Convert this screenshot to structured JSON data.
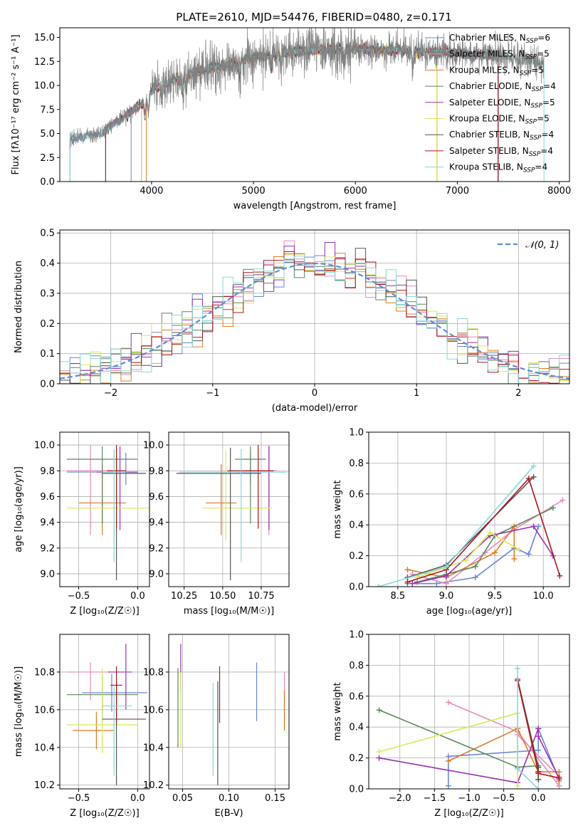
{
  "figure_title": "PLATE=2610, MJD=54476, FIBERID=0480, z=0.171",
  "colors": {
    "Chabrier MILES": "#6a86d6",
    "Salpeter MILES": "#e88bbd",
    "Kroupa MILES": "#e07c22",
    "Chabrier ELODIE": "#5a8a5e",
    "Salpeter ELODIE": "#9b2fb5",
    "Kroupa ELODIE": "#d9ea54",
    "Chabrier STELIB": "#555555",
    "Salpeter STELIB": "#b0141c",
    "Kroupa STELIB": "#86dada",
    "data": "#808080",
    "gauss": "#5b8fd6"
  },
  "chart_data": [
    {
      "id": "spectrum",
      "type": "line",
      "xlabel": "wavelength [Angstrom, rest frame]",
      "ylabel": "Flux [fλ10⁻¹⁷ erg cm⁻² s⁻¹ A⁻¹]",
      "xlim": [
        3100,
        8100
      ],
      "ylim": [
        0,
        16
      ],
      "xticks": [
        4000,
        5000,
        6000,
        7000,
        8000
      ],
      "yticks": [
        0.0,
        2.5,
        5.0,
        7.5,
        10.0,
        12.5,
        15.0
      ],
      "ytick_labels": [
        "0.0",
        "2.5",
        "5.0",
        "7.5",
        "10.0",
        "12.5",
        "15.0"
      ],
      "legend_position": "upper-right",
      "legend": [
        "Chabrier MILES, N_SSP=6",
        "Salpeter MILES, N_SSP=5",
        "Kroupa MILES, N_SSP=5",
        "Chabrier ELODIE, N_SSP=4",
        "Salpeter ELODIE, N_SSP=5",
        "Kroupa ELODIE, N_SSP=5",
        "Chabrier STELIB, N_SSP=4",
        "Salpeter STELIB, N_SSP=4",
        "Kroupa STELIB, N_SSP=4"
      ],
      "legend_labels": [
        {
          "base": "Chabrier MILES, N",
          "sub": "SSP",
          "tail": "=6"
        },
        {
          "base": "Salpeter MILES, N",
          "sub": "SSP",
          "tail": "=5"
        },
        {
          "base": "Kroupa MILES, N",
          "sub": "SSP",
          "tail": "=5"
        },
        {
          "base": "Chabrier ELODIE, N",
          "sub": "SSP",
          "tail": "=4"
        },
        {
          "base": "Salpeter ELODIE, N",
          "sub": "SSP",
          "tail": "=5"
        },
        {
          "base": "Kroupa ELODIE, N",
          "sub": "SSP",
          "tail": "=5"
        },
        {
          "base": "Chabrier STELIB, N",
          "sub": "SSP",
          "tail": "=4"
        },
        {
          "base": "Salpeter STELIB, N",
          "sub": "SSP",
          "tail": "=4"
        },
        {
          "base": "Kroupa STELIB, N",
          "sub": "SSP",
          "tail": "=4"
        }
      ],
      "legend_colors": [
        "#6a86d6",
        "#e88bbd",
        "#e07c22",
        "#5a8a5e",
        "#9b2fb5",
        "#d9ea54",
        "#555555",
        "#b0141c",
        "#86dada"
      ],
      "continuum_knots": [
        [
          3200,
          4.4
        ],
        [
          3500,
          5.0
        ],
        [
          3700,
          6.5
        ],
        [
          3950,
          8.5
        ],
        [
          4000,
          9.5
        ],
        [
          4200,
          10.5
        ],
        [
          4500,
          11.6
        ],
        [
          4800,
          12.3
        ],
        [
          5000,
          12.9
        ],
        [
          5500,
          13.6
        ],
        [
          6000,
          13.8
        ],
        [
          6500,
          13.6
        ],
        [
          7000,
          13.4
        ],
        [
          7500,
          13.0
        ],
        [
          7850,
          12.3
        ]
      ],
      "model_starts": [
        [
          3200,
          3800
        ],
        [
          3550,
          7400
        ],
        [
          3950,
          6800
        ],
        [
          3900,
          7400
        ],
        [
          3900,
          7400
        ],
        [
          3900,
          6800
        ],
        [
          3550,
          7400
        ],
        [
          3550,
          7400
        ],
        [
          3200,
          7850
        ]
      ]
    },
    {
      "id": "residuals",
      "type": "histogram",
      "xlabel": "(data-model)/error",
      "ylabel": "Normed distribution",
      "xlim": [
        -2.5,
        2.5
      ],
      "ylim": [
        0,
        0.51
      ],
      "xticks": [
        -2,
        -1,
        0,
        1,
        2
      ],
      "xtick_labels": [
        "−2",
        "−1",
        "0",
        "1",
        "2"
      ],
      "yticks": [
        0.0,
        0.1,
        0.2,
        0.3,
        0.4,
        0.5
      ],
      "ytick_labels": [
        "0.0",
        "0.1",
        "0.2",
        "0.3",
        "0.4",
        "0.5"
      ],
      "bin_width": 0.1,
      "legend": "𝒩(0, 1)",
      "legend_position": "upper-right",
      "grid": true
    },
    {
      "id": "age_vs_Z",
      "type": "errorbar",
      "xlabel": "Z [log₁₀(Z/Z☉)]",
      "ylabel": "age  [log₁₀(age/yr)]",
      "xlim": [
        -0.66,
        0.1
      ],
      "ylim": [
        8.9,
        10.1
      ],
      "xticks": [
        -0.5,
        0.0
      ],
      "xtick_labels": [
        "−0.5",
        "0.0"
      ],
      "yticks": [
        9.0,
        9.2,
        9.4,
        9.6,
        9.8,
        10.0
      ],
      "ytick_labels": [
        "9.0",
        "9.2",
        "9.4",
        "9.6",
        "9.8",
        "10.0"
      ],
      "grid": true,
      "points": [
        {
          "x": -0.1,
          "xerr": [
            0.5,
            0.1
          ],
          "y": 9.79,
          "yerr": [
            0.1,
            0.15
          ]
        },
        {
          "x": -0.4,
          "xerr": [
            0.2,
            0.2
          ],
          "y": 9.8,
          "yerr": [
            0.5,
            0.2
          ]
        },
        {
          "x": -0.3,
          "xerr": [
            0.2,
            0.2
          ],
          "y": 9.55,
          "yerr": [
            0.25,
            0.3
          ]
        },
        {
          "x": -0.3,
          "xerr": [
            0.3,
            0.3
          ],
          "y": 9.89,
          "yerr": [
            0.5,
            0.1
          ]
        },
        {
          "x": -0.15,
          "xerr": [
            0.2,
            0.15
          ],
          "y": 9.79,
          "yerr": [
            0.45,
            0.2
          ]
        },
        {
          "x": -0.2,
          "xerr": [
            0.4,
            0.4
          ],
          "y": 9.51,
          "yerr": [
            0.25,
            0.45
          ]
        },
        {
          "x": -0.18,
          "xerr": [
            0.12,
            0.25
          ],
          "y": 9.78,
          "yerr": [
            0.83,
            0.2
          ]
        },
        {
          "x": -0.18,
          "xerr": [
            0.08,
            0.08
          ],
          "y": 9.8,
          "yerr": [
            0.45,
            0.2
          ]
        },
        {
          "x": -0.2,
          "xerr": [
            0.1,
            0.1
          ],
          "y": 9.79,
          "yerr": [
            0.7,
            0.18
          ]
        }
      ]
    },
    {
      "id": "age_vs_mass",
      "type": "errorbar",
      "xlabel": "mass [log₁₀(M/M☉)]",
      "ylabel": "",
      "xlim": [
        10.15,
        10.93
      ],
      "ylim": [
        8.9,
        10.1
      ],
      "xticks": [
        10.25,
        10.5,
        10.75
      ],
      "xtick_labels": [
        "10.25",
        "10.50",
        "10.75"
      ],
      "yticks": [
        9.0,
        9.2,
        9.4,
        9.6,
        9.8,
        10.0
      ],
      "ytick_labels": [
        "9.0",
        "9.2",
        "9.4",
        "9.6",
        "9.8",
        "10.0"
      ],
      "grid": true,
      "points": [
        {
          "x": 10.68,
          "xerr": [
            0.1,
            0.05
          ],
          "y": 9.79,
          "yerr": [
            0.1,
            0.15
          ]
        },
        {
          "x": 10.8,
          "xerr": [
            0.15,
            0.05
          ],
          "y": 9.8,
          "yerr": [
            0.5,
            0.2
          ]
        },
        {
          "x": 10.49,
          "xerr": [
            0.1,
            0.1
          ],
          "y": 9.55,
          "yerr": [
            0.25,
            0.3
          ]
        },
        {
          "x": 10.68,
          "xerr": [
            0.1,
            0.1
          ],
          "y": 9.89,
          "yerr": [
            0.5,
            0.1
          ]
        },
        {
          "x": 10.8,
          "xerr": [
            0.2,
            0.1
          ],
          "y": 9.79,
          "yerr": [
            0.45,
            0.2
          ]
        },
        {
          "x": 10.52,
          "xerr": [
            0.15,
            0.3
          ],
          "y": 9.51,
          "yerr": [
            0.25,
            0.45
          ]
        },
        {
          "x": 10.55,
          "xerr": [
            0.35,
            0.2
          ],
          "y": 9.78,
          "yerr": [
            0.83,
            0.2
          ]
        },
        {
          "x": 10.73,
          "xerr": [
            0.2,
            0.1
          ],
          "y": 9.8,
          "yerr": [
            0.45,
            0.2
          ]
        },
        {
          "x": 10.62,
          "xerr": [
            0.4,
            0.3
          ],
          "y": 9.79,
          "yerr": [
            0.7,
            0.18
          ]
        }
      ]
    },
    {
      "id": "weight_vs_age",
      "type": "line",
      "xlabel": "age  [log₁₀(age/yr)]",
      "ylabel": "mass weight",
      "xlim": [
        8.2,
        10.27
      ],
      "ylim": [
        0,
        1
      ],
      "xticks": [
        8.5,
        9.0,
        9.5,
        10.0
      ],
      "xtick_labels": [
        "8.5",
        "9.0",
        "9.5",
        "10.0"
      ],
      "yticks": [
        0.0,
        0.2,
        0.4,
        0.6,
        0.8,
        1.0
      ],
      "ytick_labels": [
        "0.0",
        "0.2",
        "0.4",
        "0.6",
        "0.8",
        "1.0"
      ],
      "grid": true,
      "series": [
        {
          "x": [
            8.6,
            8.9,
            9.3,
            9.7,
            9.85,
            9.95
          ],
          "y": [
            0.02,
            0.02,
            0.06,
            0.25,
            0.21,
            0.39
          ]
        },
        {
          "x": [
            8.65,
            9.0,
            9.4,
            9.7,
            10.2
          ],
          "y": [
            0.08,
            0.02,
            0.22,
            0.37,
            0.56
          ]
        },
        {
          "x": [
            8.6,
            9.0,
            9.5,
            9.7,
            9.7
          ],
          "y": [
            0.11,
            0.06,
            0.22,
            0.39,
            0.18
          ]
        },
        {
          "x": [
            8.7,
            9.0,
            9.3,
            9.5,
            10.1
          ],
          "y": [
            0.03,
            0.08,
            0.13,
            0.33,
            0.51
          ]
        },
        {
          "x": [
            8.65,
            9.0,
            9.45,
            9.9,
            10.1
          ],
          "y": [
            0.02,
            0.07,
            0.33,
            0.39,
            0.2
          ]
        },
        {
          "x": [
            8.7,
            9.2,
            9.45,
            9.75
          ],
          "y": [
            0.06,
            0.17,
            0.35,
            0.24
          ]
        },
        {
          "x": [
            8.6,
            9.0,
            9.9
          ],
          "y": [
            0.06,
            0.14,
            0.71
          ]
        },
        {
          "x": [
            8.6,
            9.0,
            9.85,
            10.17
          ],
          "y": [
            0.03,
            0.11,
            0.7,
            0.07
          ]
        },
        {
          "x": [
            8.3,
            9.0,
            9.9
          ],
          "y": [
            0.0,
            0.13,
            0.78
          ]
        }
      ]
    },
    {
      "id": "mass_vs_Z",
      "type": "errorbar",
      "xlabel": "Z [log₁₀(Z/Z☉)]",
      "ylabel": "mass [log₁₀(M/M☉)]",
      "xlim": [
        -0.66,
        0.1
      ],
      "ylim": [
        10.18,
        11.0
      ],
      "xticks": [
        -0.5,
        0.0
      ],
      "xtick_labels": [
        "−0.5",
        "0.0"
      ],
      "yticks": [
        10.2,
        10.4,
        10.6,
        10.8
      ],
      "ytick_labels": [
        "10.2",
        "10.4",
        "10.6",
        "10.8"
      ],
      "grid": true,
      "points": [
        {
          "x": -0.22,
          "xerr": [
            0.25,
            0.3
          ],
          "y": 10.69,
          "yerr": [
            0.1,
            0.1
          ]
        },
        {
          "x": -0.4,
          "xerr": [
            0.2,
            0.2
          ],
          "y": 10.8,
          "yerr": [
            0.15,
            0.05
          ]
        },
        {
          "x": -0.35,
          "xerr": [
            0.2,
            0.15
          ],
          "y": 10.49,
          "yerr": [
            0.1,
            0.1
          ]
        },
        {
          "x": -0.3,
          "xerr": [
            0.3,
            0.3
          ],
          "y": 10.68,
          "yerr": [
            0.15,
            0.1
          ]
        },
        {
          "x": -0.1,
          "xerr": [
            0.15,
            0.05
          ],
          "y": 10.8,
          "yerr": [
            0.2,
            0.15
          ]
        },
        {
          "x": -0.3,
          "xerr": [
            0.3,
            0.3
          ],
          "y": 10.52,
          "yerr": [
            0.15,
            0.3
          ]
        },
        {
          "x": -0.18,
          "xerr": [
            0.12,
            0.25
          ],
          "y": 10.55,
          "yerr": [
            0.35,
            0.2
          ]
        },
        {
          "x": -0.18,
          "xerr": [
            0.05,
            0.05
          ],
          "y": 10.73,
          "yerr": [
            0.2,
            0.1
          ]
        },
        {
          "x": -0.2,
          "xerr": [
            0.1,
            0.15
          ],
          "y": 10.62,
          "yerr": [
            0.37,
            0.1
          ]
        }
      ]
    },
    {
      "id": "mass_vs_EBV",
      "type": "errorbar",
      "xlabel": "E(B-V)",
      "ylabel": "",
      "xlim": [
        0.035,
        0.165
      ],
      "ylim": [
        10.18,
        11.0
      ],
      "xticks": [
        0.05,
        0.1,
        0.15
      ],
      "xtick_labels": [
        "0.05",
        "0.10",
        "0.15"
      ],
      "yticks": [
        10.2,
        10.4,
        10.6,
        10.8
      ],
      "ytick_labels": [
        "10.2",
        "10.4",
        "10.6",
        "10.8"
      ],
      "grid": true,
      "points": [
        {
          "x": 0.13,
          "y": 10.69,
          "yerr": [
            0.15,
            0.16
          ]
        },
        {
          "x": 0.16,
          "y": 10.69,
          "yerr": [
            0.2,
            0.11
          ]
        },
        {
          "x": 0.16,
          "y": 10.6,
          "yerr": [
            0.11,
            0.1
          ]
        },
        {
          "x": 0.045,
          "y": 10.6,
          "yerr": [
            0.2,
            0.22
          ]
        },
        {
          "x": 0.048,
          "y": 10.8,
          "yerr": [
            0.1,
            0.15
          ]
        },
        {
          "x": 0.048,
          "y": 10.6,
          "yerr": [
            0.2,
            0.2
          ]
        },
        {
          "x": 0.088,
          "y": 10.55,
          "yerr": [
            0.35,
            0.2
          ]
        },
        {
          "x": 0.09,
          "y": 10.73,
          "yerr": [
            0.2,
            0.1
          ]
        },
        {
          "x": 0.083,
          "y": 10.5,
          "yerr": [
            0.25,
            0.24
          ]
        }
      ]
    },
    {
      "id": "weight_vs_Z",
      "type": "line",
      "xlabel": "Z [log₁₀(Z/Z☉)]",
      "ylabel": "mass weight",
      "xlim": [
        -2.45,
        0.45
      ],
      "ylim": [
        0,
        1
      ],
      "xticks": [
        -2.0,
        -1.5,
        -1.0,
        -0.5,
        0.0
      ],
      "xtick_labels": [
        "−2.0",
        "−1.5",
        "−1.0",
        "−0.5",
        "0.0"
      ],
      "yticks": [
        0.0,
        0.2,
        0.4,
        0.6,
        0.8,
        1.0
      ],
      "ytick_labels": [
        "0.0",
        "0.2",
        "0.4",
        "0.6",
        "0.8",
        "1.0"
      ],
      "grid": true,
      "series": [
        {
          "x": [
            -1.3,
            -1.3,
            0.0,
            0.0,
            0.3,
            0.3
          ],
          "y": [
            0.02,
            0.21,
            0.25,
            0.39,
            0.06,
            0.02
          ]
        },
        {
          "x": [
            -1.3,
            -0.3,
            0.3,
            0.3,
            -0.3
          ],
          "y": [
            0.56,
            0.37,
            0.02,
            0.08,
            0.35
          ]
        },
        {
          "x": [
            -1.3,
            -0.3,
            0.0,
            0.3,
            0.3
          ],
          "y": [
            0.18,
            0.39,
            0.11,
            0.11,
            0.05
          ]
        },
        {
          "x": [
            -2.3,
            -0.3,
            0.0,
            0.0
          ],
          "y": [
            0.51,
            0.14,
            0.15,
            0.06
          ]
        },
        {
          "x": [
            -2.3,
            -0.3,
            0.0,
            0.0,
            0.3
          ],
          "y": [
            0.2,
            0.04,
            0.39,
            0.34,
            0.07
          ]
        },
        {
          "x": [
            -2.3,
            -0.3,
            -0.3,
            -0.3
          ],
          "y": [
            0.24,
            0.49,
            0.02,
            0.02
          ]
        },
        {
          "x": [
            -0.3,
            0.0,
            0.0
          ],
          "y": [
            0.71,
            0.14,
            0.06
          ]
        },
        {
          "x": [
            -0.3,
            0.0,
            0.0,
            0.3
          ],
          "y": [
            0.7,
            0.11,
            0.1,
            0.07
          ]
        },
        {
          "x": [
            -0.3,
            -0.3,
            0.0
          ],
          "y": [
            0.78,
            0.13,
            0.0
          ]
        }
      ]
    }
  ]
}
